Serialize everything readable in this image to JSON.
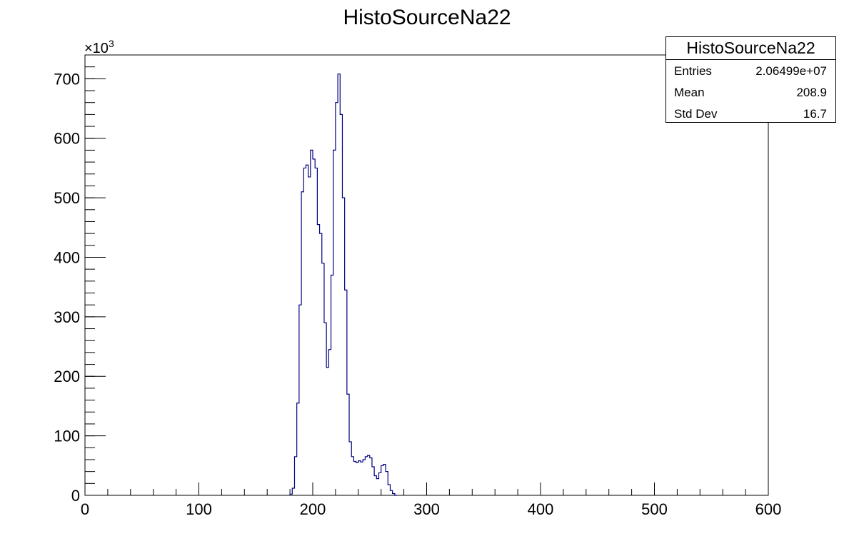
{
  "chart_data": {
    "type": "histogram",
    "title": "HistoSourceNa22",
    "xlabel": "",
    "ylabel": "",
    "y_multiplier": "×10³",
    "xlim": [
      0,
      600
    ],
    "ylim": [
      0,
      740
    ],
    "x_ticks": [
      0,
      100,
      200,
      300,
      400,
      500,
      600
    ],
    "y_ticks": [
      0,
      100,
      200,
      300,
      400,
      500,
      600,
      700
    ],
    "bin_width": 2,
    "grid": false,
    "line_color": "#00007f",
    "bins": [
      {
        "x": 180,
        "y": 2
      },
      {
        "x": 182,
        "y": 12
      },
      {
        "x": 184,
        "y": 65
      },
      {
        "x": 186,
        "y": 155
      },
      {
        "x": 188,
        "y": 320
      },
      {
        "x": 190,
        "y": 510
      },
      {
        "x": 192,
        "y": 550
      },
      {
        "x": 194,
        "y": 555
      },
      {
        "x": 196,
        "y": 535
      },
      {
        "x": 198,
        "y": 580
      },
      {
        "x": 200,
        "y": 565
      },
      {
        "x": 202,
        "y": 550
      },
      {
        "x": 204,
        "y": 455
      },
      {
        "x": 206,
        "y": 440
      },
      {
        "x": 208,
        "y": 390
      },
      {
        "x": 210,
        "y": 290
      },
      {
        "x": 212,
        "y": 215
      },
      {
        "x": 214,
        "y": 245
      },
      {
        "x": 216,
        "y": 370
      },
      {
        "x": 218,
        "y": 580
      },
      {
        "x": 220,
        "y": 660
      },
      {
        "x": 222,
        "y": 708
      },
      {
        "x": 224,
        "y": 640
      },
      {
        "x": 226,
        "y": 500
      },
      {
        "x": 228,
        "y": 345
      },
      {
        "x": 230,
        "y": 170
      },
      {
        "x": 232,
        "y": 90
      },
      {
        "x": 234,
        "y": 65
      },
      {
        "x": 236,
        "y": 57
      },
      {
        "x": 238,
        "y": 55
      },
      {
        "x": 240,
        "y": 58
      },
      {
        "x": 242,
        "y": 56
      },
      {
        "x": 244,
        "y": 60
      },
      {
        "x": 246,
        "y": 65
      },
      {
        "x": 248,
        "y": 67
      },
      {
        "x": 250,
        "y": 63
      },
      {
        "x": 252,
        "y": 48
      },
      {
        "x": 254,
        "y": 33
      },
      {
        "x": 256,
        "y": 28
      },
      {
        "x": 258,
        "y": 38
      },
      {
        "x": 260,
        "y": 50
      },
      {
        "x": 262,
        "y": 52
      },
      {
        "x": 264,
        "y": 40
      },
      {
        "x": 266,
        "y": 18
      },
      {
        "x": 268,
        "y": 8
      },
      {
        "x": 270,
        "y": 3
      },
      {
        "x": 272,
        "y": 0
      }
    ]
  },
  "stats": {
    "title": "HistoSourceNa22",
    "entries_label": "Entries",
    "entries_value": "2.06499e+07",
    "mean_label": "Mean",
    "mean_value": "208.9",
    "stddev_label": "Std Dev",
    "stddev_value": "16.7"
  }
}
